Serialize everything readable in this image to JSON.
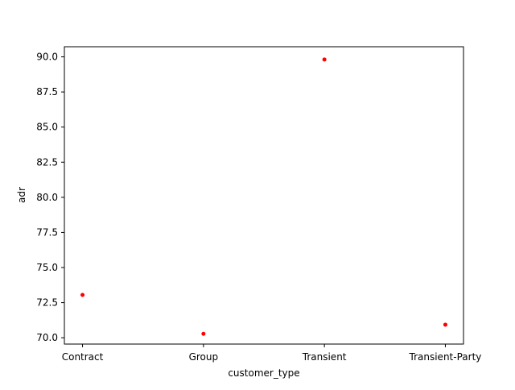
{
  "chart_data": {
    "type": "scatter",
    "title": "",
    "xlabel": "customer_type",
    "ylabel": "adr",
    "categories": [
      "Contract",
      "Group",
      "Transient",
      "Transient-Party"
    ],
    "series": [
      {
        "values": [
          73.05,
          70.28,
          89.81,
          70.93
        ],
        "color": "#ff0000"
      }
    ],
    "ylim": [
      69.55,
      90.72
    ],
    "y_ticks": [
      70.0,
      72.5,
      75.0,
      77.5,
      80.0,
      82.5,
      85.0,
      87.5,
      90.0
    ],
    "y_tick_labels": [
      "70.0",
      "72.5",
      "75.0",
      "77.5",
      "80.0",
      "82.5",
      "85.0",
      "87.5",
      "90.0"
    ],
    "grid": false,
    "legend": "none",
    "marker": "point"
  }
}
